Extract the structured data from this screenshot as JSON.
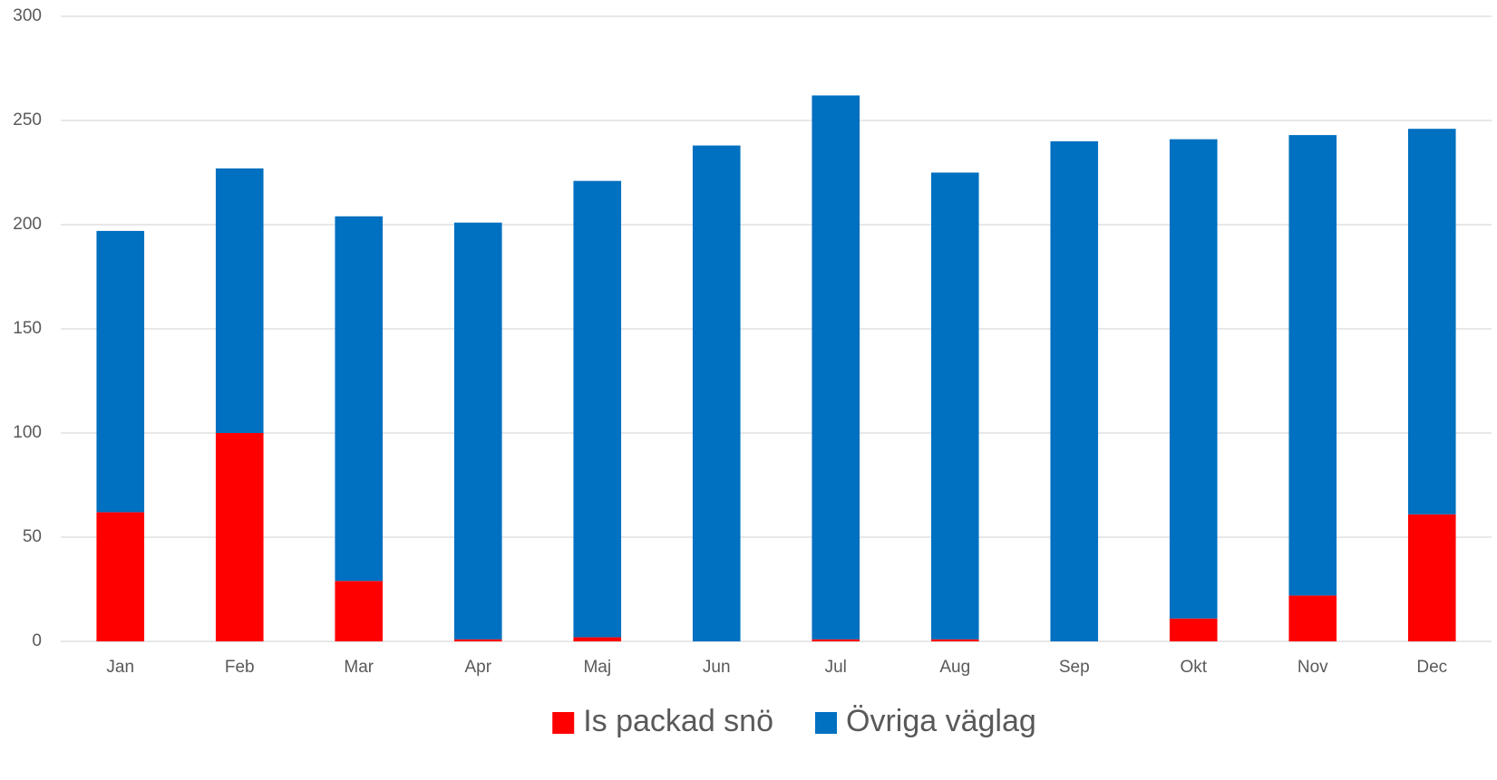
{
  "chart_data": {
    "type": "stacked_bar",
    "categories": [
      "Jan",
      "Feb",
      "Mar",
      "Apr",
      "Maj",
      "Jun",
      "Jul",
      "Aug",
      "Sep",
      "Okt",
      "Nov",
      "Dec"
    ],
    "series": [
      {
        "name": "Is packad snö",
        "color": "#ff0000",
        "values": [
          62,
          100,
          29,
          1,
          2,
          0,
          1,
          1,
          0,
          11,
          22,
          61
        ]
      },
      {
        "name": "Övriga väglag",
        "color": "#0070c0",
        "values": [
          135,
          127,
          175,
          200,
          219,
          238,
          261,
          224,
          240,
          230,
          221,
          185
        ]
      }
    ],
    "ylim": [
      0,
      300
    ],
    "yticks": [
      0,
      50,
      100,
      150,
      200,
      250,
      300
    ],
    "grid": true,
    "legend": "bottom"
  }
}
